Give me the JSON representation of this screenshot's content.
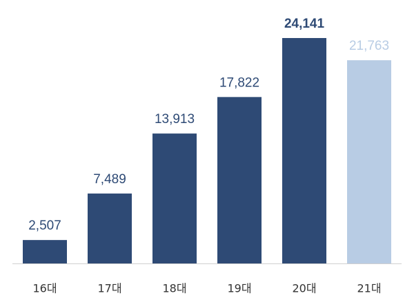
{
  "chart_data": {
    "type": "bar",
    "categories": [
      "16대",
      "17대",
      "18대",
      "19대",
      "20대",
      "21대"
    ],
    "values": [
      2507,
      7489,
      13913,
      17822,
      24141,
      21763
    ],
    "value_labels": [
      "2,507",
      "7,489",
      "13,913",
      "17,822",
      "24,141",
      "21,763"
    ],
    "colors": [
      "#2e4a75",
      "#2e4a75",
      "#2e4a75",
      "#2e4a75",
      "#2e4a75",
      "#b8cce4"
    ],
    "value_label_bold": [
      false,
      false,
      false,
      false,
      true,
      false
    ]
  }
}
